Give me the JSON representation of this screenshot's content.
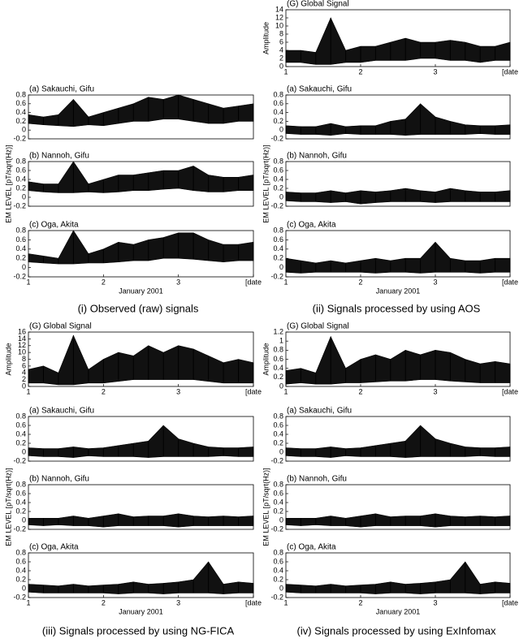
{
  "captions": [
    "(i)  Observed (raw) signals",
    "(ii)  Signals processed by using AOS",
    "(iii)  Signals processed by using NG-FICA",
    "(iv)  Signals processed by using ExInfomax"
  ],
  "chart_data": [
    {
      "type": "band",
      "title": "(a) Sakauchi, Gifu",
      "xlim": [
        1,
        4
      ],
      "ylim": [
        -0.2,
        0.8
      ],
      "yticks": [
        -0.2,
        0,
        0.2,
        0.4,
        0.6,
        0.8
      ],
      "x": [
        1,
        1.2,
        1.4,
        1.6,
        1.8,
        2,
        2.2,
        2.4,
        2.6,
        2.8,
        3,
        3.2,
        3.4,
        3.6,
        3.8,
        4
      ],
      "series": [
        {
          "values": [
            0.35,
            0.3,
            0.35,
            0.7,
            0.3,
            0.4,
            0.5,
            0.6,
            0.75,
            0.7,
            0.8,
            0.7,
            0.6,
            0.5,
            0.55,
            0.6
          ]
        },
        {
          "values": [
            0.15,
            0.12,
            0.1,
            0.08,
            0.12,
            0.1,
            0.15,
            0.2,
            0.2,
            0.25,
            0.25,
            0.2,
            0.15,
            0.15,
            0.2,
            0.2
          ]
        }
      ]
    },
    {
      "type": "band",
      "title": "(b) Nannoh, Gifu",
      "ylabel": "EM LEVEL  [pT/sqrt(Hz)]",
      "xlim": [
        1,
        4
      ],
      "ylim": [
        -0.2,
        0.8
      ],
      "yticks": [
        -0.2,
        0,
        0.2,
        0.4,
        0.6,
        0.8
      ],
      "x": [
        1,
        1.2,
        1.4,
        1.6,
        1.8,
        2,
        2.2,
        2.4,
        2.6,
        2.8,
        3,
        3.2,
        3.4,
        3.6,
        3.8,
        4
      ],
      "series": [
        {
          "values": [
            0.35,
            0.3,
            0.3,
            0.8,
            0.3,
            0.4,
            0.5,
            0.5,
            0.55,
            0.6,
            0.6,
            0.7,
            0.5,
            0.45,
            0.45,
            0.5
          ]
        },
        {
          "values": [
            0.15,
            0.12,
            0.1,
            0.1,
            0.12,
            0.1,
            0.12,
            0.15,
            0.15,
            0.18,
            0.2,
            0.15,
            0.12,
            0.12,
            0.15,
            0.15
          ]
        }
      ]
    },
    {
      "type": "band",
      "title": "(c) Oga, Akita",
      "xlabel": "January 2001",
      "xlim": [
        1,
        4
      ],
      "ylim": [
        -0.2,
        0.8
      ],
      "yticks": [
        -0.2,
        0,
        0.2,
        0.4,
        0.6,
        0.8
      ],
      "xticks": [
        1,
        2,
        3,
        {
          "value": 4,
          "label": "[date"
        }
      ],
      "x": [
        1,
        1.2,
        1.4,
        1.6,
        1.8,
        2,
        2.2,
        2.4,
        2.6,
        2.8,
        3,
        3.2,
        3.4,
        3.6,
        3.8,
        4
      ],
      "series": [
        {
          "values": [
            0.3,
            0.25,
            0.2,
            0.8,
            0.3,
            0.4,
            0.55,
            0.5,
            0.6,
            0.65,
            0.75,
            0.75,
            0.6,
            0.5,
            0.5,
            0.55
          ]
        },
        {
          "values": [
            0.12,
            0.1,
            0.08,
            0.08,
            0.1,
            0.1,
            0.12,
            0.15,
            0.15,
            0.2,
            0.2,
            0.18,
            0.15,
            0.12,
            0.15,
            0.15
          ]
        }
      ]
    },
    {
      "type": "band",
      "title": "(G) Global Signal",
      "ylabel": "Amplitude",
      "xlim": [
        1,
        4
      ],
      "ylim": [
        0,
        14
      ],
      "yticks": [
        0,
        2,
        4,
        6,
        8,
        10,
        12,
        14
      ],
      "xticks": [
        1,
        2,
        3,
        {
          "value": 4,
          "label": "[date"
        }
      ],
      "x": [
        1,
        1.2,
        1.4,
        1.6,
        1.8,
        2,
        2.2,
        2.4,
        2.6,
        2.8,
        3,
        3.2,
        3.4,
        3.6,
        3.8,
        4
      ],
      "series": [
        {
          "values": [
            4,
            4,
            3.5,
            12,
            4,
            5,
            5,
            6,
            7,
            6,
            6,
            6.5,
            6,
            5,
            5,
            6
          ]
        },
        {
          "values": [
            1,
            1,
            0.5,
            0.5,
            1,
            1,
            1.5,
            1.5,
            1.5,
            2,
            2,
            1.5,
            1.5,
            1,
            1.5,
            1.5
          ]
        }
      ]
    },
    {
      "type": "band",
      "title": "(a) Sakauchi, Gifu",
      "xlim": [
        1,
        4
      ],
      "ylim": [
        -0.2,
        0.8
      ],
      "yticks": [
        -0.2,
        0,
        0.2,
        0.4,
        0.6,
        0.8
      ],
      "x": [
        1,
        1.2,
        1.4,
        1.6,
        1.8,
        2,
        2.2,
        2.4,
        2.6,
        2.8,
        3,
        3.2,
        3.4,
        3.6,
        3.8,
        4
      ],
      "series": [
        {
          "values": [
            0.1,
            0.08,
            0.08,
            0.15,
            0.08,
            0.1,
            0.1,
            0.2,
            0.25,
            0.6,
            0.3,
            0.2,
            0.12,
            0.1,
            0.1,
            0.12
          ]
        },
        {
          "values": [
            -0.08,
            -0.1,
            -0.1,
            -0.12,
            -0.08,
            -0.1,
            -0.1,
            -0.1,
            -0.12,
            -0.1,
            -0.1,
            -0.1,
            -0.1,
            -0.08,
            -0.1,
            -0.1
          ]
        }
      ]
    },
    {
      "type": "band",
      "title": "(b) Nannoh, Gifu",
      "ylabel": "EM LEVEL  [pT/sqrt(Hz)]",
      "xlim": [
        1,
        4
      ],
      "ylim": [
        -0.2,
        0.8
      ],
      "yticks": [
        -0.2,
        0,
        0.2,
        0.4,
        0.6,
        0.8
      ],
      "x": [
        1,
        1.2,
        1.4,
        1.6,
        1.8,
        2,
        2.2,
        2.4,
        2.6,
        2.8,
        3,
        3.2,
        3.4,
        3.6,
        3.8,
        4
      ],
      "series": [
        {
          "values": [
            0.12,
            0.1,
            0.1,
            0.15,
            0.1,
            0.15,
            0.12,
            0.15,
            0.2,
            0.15,
            0.12,
            0.2,
            0.15,
            0.12,
            0.12,
            0.15
          ]
        },
        {
          "values": [
            -0.08,
            -0.1,
            -0.1,
            -0.12,
            -0.1,
            -0.15,
            -0.12,
            -0.1,
            -0.1,
            -0.1,
            -0.12,
            -0.1,
            -0.1,
            -0.1,
            -0.1,
            -0.1
          ]
        }
      ]
    },
    {
      "type": "band",
      "title": "(c) Oga, Akita",
      "xlabel": "January 2001",
      "xlim": [
        1,
        4
      ],
      "ylim": [
        -0.2,
        0.8
      ],
      "yticks": [
        -0.2,
        0,
        0.2,
        0.4,
        0.6,
        0.8
      ],
      "xticks": [
        1,
        2,
        3,
        {
          "value": 4,
          "label": "[date"
        }
      ],
      "x": [
        1,
        1.2,
        1.4,
        1.6,
        1.8,
        2,
        2.2,
        2.4,
        2.6,
        2.8,
        3,
        3.2,
        3.4,
        3.6,
        3.8,
        4
      ],
      "series": [
        {
          "values": [
            0.2,
            0.15,
            0.1,
            0.15,
            0.1,
            0.15,
            0.2,
            0.15,
            0.2,
            0.2,
            0.55,
            0.2,
            0.15,
            0.15,
            0.2,
            0.2
          ]
        },
        {
          "values": [
            -0.1,
            -0.12,
            -0.1,
            -0.1,
            -0.1,
            -0.1,
            -0.12,
            -0.1,
            -0.1,
            -0.12,
            -0.1,
            -0.1,
            -0.1,
            -0.12,
            -0.1,
            -0.1
          ]
        }
      ]
    },
    {
      "type": "band",
      "title": "(G) Global Signal",
      "ylabel": "Amplitude",
      "xlim": [
        1,
        4
      ],
      "ylim": [
        0,
        16
      ],
      "yticks": [
        0,
        2,
        4,
        6,
        8,
        10,
        12,
        14,
        16
      ],
      "xticks": [
        1,
        2,
        3,
        {
          "value": 4,
          "label": "[date"
        }
      ],
      "x": [
        1,
        1.2,
        1.4,
        1.6,
        1.8,
        2,
        2.2,
        2.4,
        2.6,
        2.8,
        3,
        3.2,
        3.4,
        3.6,
        3.8,
        4
      ],
      "series": [
        {
          "values": [
            5,
            6,
            4,
            15,
            5,
            8,
            10,
            9,
            12,
            10,
            12,
            11,
            9,
            7,
            8,
            7
          ]
        },
        {
          "values": [
            1,
            1,
            0.5,
            0.5,
            1,
            1,
            1.5,
            2,
            2,
            2,
            2,
            2,
            1.5,
            1,
            1,
            1
          ]
        }
      ]
    },
    {
      "type": "band",
      "title": "(a) Sakauchi, Gifu",
      "xlim": [
        1,
        4
      ],
      "ylim": [
        -0.2,
        0.8
      ],
      "yticks": [
        -0.2,
        0,
        0.2,
        0.4,
        0.6,
        0.8
      ],
      "x": [
        1,
        1.2,
        1.4,
        1.6,
        1.8,
        2,
        2.2,
        2.4,
        2.6,
        2.8,
        3,
        3.2,
        3.4,
        3.6,
        3.8,
        4
      ],
      "series": [
        {
          "values": [
            0.1,
            0.08,
            0.08,
            0.12,
            0.08,
            0.1,
            0.15,
            0.2,
            0.25,
            0.6,
            0.3,
            0.2,
            0.12,
            0.1,
            0.1,
            0.12
          ]
        },
        {
          "values": [
            -0.08,
            -0.1,
            -0.1,
            -0.12,
            -0.08,
            -0.1,
            -0.1,
            -0.1,
            -0.12,
            -0.1,
            -0.1,
            -0.1,
            -0.1,
            -0.08,
            -0.1,
            -0.1
          ]
        }
      ]
    },
    {
      "type": "band",
      "title": "(b) Nannoh, Gifu",
      "ylabel": "EM LEVEL  [pT/sqrt(Hz)]",
      "xlim": [
        1,
        4
      ],
      "ylim": [
        -0.2,
        0.8
      ],
      "yticks": [
        -0.2,
        0,
        0.2,
        0.4,
        0.6,
        0.8
      ],
      "x": [
        1,
        1.2,
        1.4,
        1.6,
        1.8,
        2,
        2.2,
        2.4,
        2.6,
        2.8,
        3,
        3.2,
        3.4,
        3.6,
        3.8,
        4
      ],
      "series": [
        {
          "values": [
            0.05,
            0.05,
            0.05,
            0.1,
            0.05,
            0.1,
            0.15,
            0.08,
            0.1,
            0.1,
            0.15,
            0.1,
            0.08,
            0.1,
            0.08,
            0.1
          ]
        },
        {
          "values": [
            -0.1,
            -0.12,
            -0.1,
            -0.12,
            -0.12,
            -0.15,
            -0.12,
            -0.12,
            -0.12,
            -0.12,
            -0.15,
            -0.12,
            -0.12,
            -0.12,
            -0.12,
            -0.12
          ]
        }
      ]
    },
    {
      "type": "band",
      "title": "(c) Oga, Akita",
      "xlabel": "January 2001",
      "xlim": [
        1,
        4
      ],
      "ylim": [
        -0.2,
        0.8
      ],
      "yticks": [
        -0.2,
        0,
        0.2,
        0.4,
        0.6,
        0.8
      ],
      "xticks": [
        1,
        2,
        3,
        {
          "value": 4,
          "label": "[date"
        }
      ],
      "x": [
        1,
        1.2,
        1.4,
        1.6,
        1.8,
        2,
        2.2,
        2.4,
        2.6,
        2.8,
        3,
        3.2,
        3.4,
        3.6,
        3.8,
        4
      ],
      "series": [
        {
          "values": [
            0.1,
            0.08,
            0.06,
            0.1,
            0.06,
            0.08,
            0.1,
            0.15,
            0.1,
            0.12,
            0.15,
            0.2,
            0.6,
            0.1,
            0.15,
            0.12
          ]
        },
        {
          "values": [
            -0.08,
            -0.1,
            -0.1,
            -0.1,
            -0.1,
            -0.1,
            -0.12,
            -0.1,
            -0.1,
            -0.12,
            -0.1,
            -0.1,
            -0.1,
            -0.12,
            -0.1,
            -0.1
          ]
        }
      ]
    },
    {
      "type": "band",
      "title": "(G) Global Signal",
      "ylabel": "Amplitude",
      "xlim": [
        1,
        4
      ],
      "ylim": [
        0,
        1.2
      ],
      "yticks": [
        0,
        0.2,
        0.4,
        0.6,
        0.8,
        1,
        1.2
      ],
      "xticks": [
        1,
        2,
        3,
        {
          "value": 4,
          "label": "[date"
        }
      ],
      "x": [
        1,
        1.2,
        1.4,
        1.6,
        1.8,
        2,
        2.2,
        2.4,
        2.6,
        2.8,
        3,
        3.2,
        3.4,
        3.6,
        3.8,
        4
      ],
      "series": [
        {
          "values": [
            0.35,
            0.4,
            0.3,
            1.1,
            0.4,
            0.6,
            0.7,
            0.6,
            0.8,
            0.7,
            0.8,
            0.75,
            0.6,
            0.5,
            0.55,
            0.5
          ]
        },
        {
          "values": [
            0.05,
            0.08,
            0.05,
            0.05,
            0.08,
            0.08,
            0.1,
            0.12,
            0.12,
            0.15,
            0.15,
            0.12,
            0.1,
            0.08,
            0.08,
            0.08
          ]
        }
      ]
    },
    {
      "type": "band",
      "title": "(a) Sakauchi, Gifu",
      "xlim": [
        1,
        4
      ],
      "ylim": [
        -0.2,
        0.8
      ],
      "yticks": [
        -0.2,
        0,
        0.2,
        0.4,
        0.6,
        0.8
      ],
      "x": [
        1,
        1.2,
        1.4,
        1.6,
        1.8,
        2,
        2.2,
        2.4,
        2.6,
        2.8,
        3,
        3.2,
        3.4,
        3.6,
        3.8,
        4
      ],
      "series": [
        {
          "values": [
            0.1,
            0.08,
            0.08,
            0.12,
            0.08,
            0.1,
            0.15,
            0.2,
            0.25,
            0.6,
            0.3,
            0.2,
            0.12,
            0.1,
            0.1,
            0.12
          ]
        },
        {
          "values": [
            -0.08,
            -0.1,
            -0.1,
            -0.12,
            -0.08,
            -0.1,
            -0.1,
            -0.1,
            -0.12,
            -0.1,
            -0.1,
            -0.1,
            -0.1,
            -0.08,
            -0.1,
            -0.1
          ]
        }
      ]
    },
    {
      "type": "band",
      "title": "(b) Nannoh, Gifu",
      "ylabel": "EM LEVEL  [pT/sqrt(Hz)]",
      "xlim": [
        1,
        4
      ],
      "ylim": [
        -0.2,
        0.8
      ],
      "yticks": [
        -0.2,
        0,
        0.2,
        0.4,
        0.6,
        0.8
      ],
      "x": [
        1,
        1.2,
        1.4,
        1.6,
        1.8,
        2,
        2.2,
        2.4,
        2.6,
        2.8,
        3,
        3.2,
        3.4,
        3.6,
        3.8,
        4
      ],
      "series": [
        {
          "values": [
            0.05,
            0.05,
            0.05,
            0.1,
            0.05,
            0.1,
            0.15,
            0.08,
            0.1,
            0.1,
            0.15,
            0.1,
            0.08,
            0.1,
            0.08,
            0.1
          ]
        },
        {
          "values": [
            -0.1,
            -0.12,
            -0.1,
            -0.12,
            -0.12,
            -0.15,
            -0.12,
            -0.12,
            -0.12,
            -0.12,
            -0.15,
            -0.12,
            -0.12,
            -0.12,
            -0.12,
            -0.12
          ]
        }
      ]
    },
    {
      "type": "band",
      "title": "(c) Oga, Akita",
      "xlabel": "January 2001",
      "xlim": [
        1,
        4
      ],
      "ylim": [
        -0.2,
        0.8
      ],
      "yticks": [
        -0.2,
        0,
        0.2,
        0.4,
        0.6,
        0.8
      ],
      "xticks": [
        1,
        2,
        3,
        {
          "value": 4,
          "label": "[date"
        }
      ],
      "x": [
        1,
        1.2,
        1.4,
        1.6,
        1.8,
        2,
        2.2,
        2.4,
        2.6,
        2.8,
        3,
        3.2,
        3.4,
        3.6,
        3.8,
        4
      ],
      "series": [
        {
          "values": [
            0.1,
            0.08,
            0.06,
            0.1,
            0.06,
            0.08,
            0.1,
            0.15,
            0.1,
            0.12,
            0.15,
            0.2,
            0.6,
            0.1,
            0.15,
            0.12
          ]
        },
        {
          "values": [
            -0.08,
            -0.1,
            -0.1,
            -0.1,
            -0.1,
            -0.1,
            -0.12,
            -0.1,
            -0.1,
            -0.12,
            -0.1,
            -0.1,
            -0.1,
            -0.12,
            -0.1,
            -0.1
          ]
        }
      ]
    }
  ]
}
